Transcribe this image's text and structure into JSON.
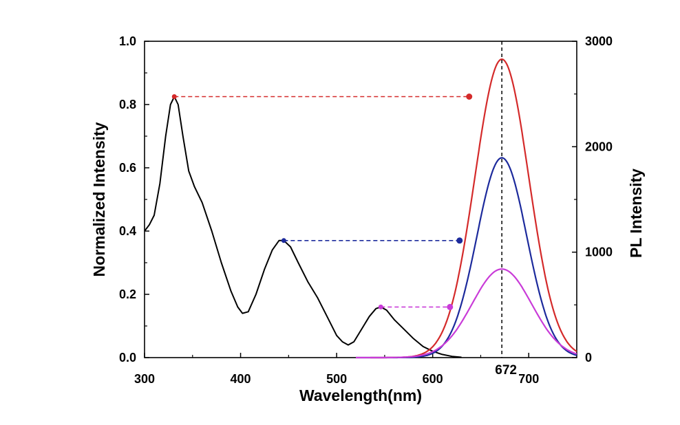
{
  "chart_data": {
    "type": "line",
    "xlabel": "Wavelength(nm)",
    "ylabel_left": "Normalized Intensity",
    "ylabel_right": "PL Intensity",
    "xlim": [
      300,
      750
    ],
    "ylim_left": [
      0,
      1.0
    ],
    "ylim_right": [
      0,
      3000
    ],
    "x_ticks": [
      300,
      400,
      500,
      600,
      700
    ],
    "x_tick_labels": [
      "300",
      "400",
      "500",
      "600",
      "700"
    ],
    "y_left_ticks": [
      0,
      0.2,
      0.4,
      0.6,
      0.8,
      1.0
    ],
    "y_left_tick_labels": [
      "0.0",
      "0.2",
      "0.4",
      "0.6",
      "0.8",
      "1.0"
    ],
    "y_right_ticks": [
      0,
      1000,
      2000,
      3000
    ],
    "y_right_tick_labels": [
      "0",
      "1000",
      "2000",
      "3000"
    ],
    "peak_marker": {
      "x": 672,
      "label": "672"
    },
    "absorption": {
      "name": "Absorption",
      "axis": "left",
      "color": "#000000",
      "points": [
        [
          300,
          0.4
        ],
        [
          305,
          0.42
        ],
        [
          310,
          0.45
        ],
        [
          316,
          0.55
        ],
        [
          322,
          0.7
        ],
        [
          327,
          0.8
        ],
        [
          331,
          0.825
        ],
        [
          335,
          0.8
        ],
        [
          340,
          0.7
        ],
        [
          346,
          0.59
        ],
        [
          352,
          0.54
        ],
        [
          360,
          0.49
        ],
        [
          370,
          0.4
        ],
        [
          380,
          0.3
        ],
        [
          390,
          0.21
        ],
        [
          397,
          0.16
        ],
        [
          402,
          0.14
        ],
        [
          408,
          0.145
        ],
        [
          416,
          0.2
        ],
        [
          425,
          0.28
        ],
        [
          433,
          0.34
        ],
        [
          440,
          0.37
        ],
        [
          445,
          0.37
        ],
        [
          452,
          0.35
        ],
        [
          460,
          0.3
        ],
        [
          470,
          0.24
        ],
        [
          480,
          0.19
        ],
        [
          490,
          0.13
        ],
        [
          500,
          0.07
        ],
        [
          506,
          0.05
        ],
        [
          512,
          0.04
        ],
        [
          518,
          0.05
        ],
        [
          526,
          0.09
        ],
        [
          534,
          0.13
        ],
        [
          541,
          0.155
        ],
        [
          546,
          0.16
        ],
        [
          552,
          0.15
        ],
        [
          560,
          0.12
        ],
        [
          570,
          0.09
        ],
        [
          580,
          0.06
        ],
        [
          590,
          0.035
        ],
        [
          600,
          0.02
        ],
        [
          610,
          0.01
        ],
        [
          620,
          0.004
        ],
        [
          630,
          0.001
        ]
      ]
    },
    "pl_series": [
      {
        "name": "PL red",
        "axis": "right",
        "color": "#d42a2a",
        "peak_x": 672,
        "peak": 2830,
        "sigma": 28,
        "start": 535,
        "end": 750,
        "marker_level": 0.825,
        "marker_x_left": 331,
        "marker_x_right": 638
      },
      {
        "name": "PL blue",
        "axis": "right",
        "color": "#1c2a9c",
        "peak_x": 672,
        "peak": 1895,
        "sigma": 26,
        "start": 520,
        "end": 750,
        "marker_level": 0.37,
        "marker_x_left": 445,
        "marker_x_right": 628
      },
      {
        "name": "PL magenta",
        "axis": "right",
        "color": "#c93bd8",
        "peak_x": 672,
        "peak": 840,
        "sigma": 31,
        "start": 520,
        "end": 750,
        "marker_level": 0.16,
        "marker_x_left": 546,
        "marker_x_right": 618
      }
    ]
  }
}
